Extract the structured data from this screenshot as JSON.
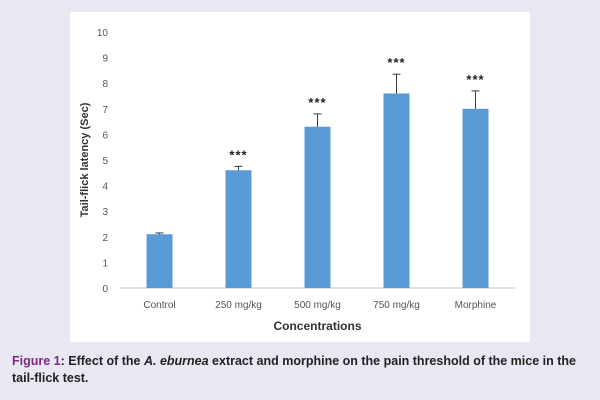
{
  "chart_data": {
    "type": "bar",
    "categories": [
      "Control",
      "250 mg/kg",
      "500 mg/kg",
      "750 mg/kg",
      "Morphine"
    ],
    "values": [
      2.1,
      4.6,
      6.3,
      7.6,
      7.0
    ],
    "errors": [
      0.05,
      0.15,
      0.5,
      0.75,
      0.7
    ],
    "annotations": [
      "",
      "***",
      "***",
      "***",
      "***"
    ],
    "xlabel": "Concentrations",
    "ylabel": "Tail-flick latency (Sec)",
    "ylim": [
      0,
      10
    ],
    "yticks": [
      "0",
      "1",
      "2",
      "3",
      "4",
      "5",
      "6",
      "7",
      "8",
      "9",
      "10"
    ],
    "grid": false,
    "bar_color": "#5b9bd5"
  },
  "caption": {
    "label": "Figure 1",
    "text_before": ": Effect of the ",
    "italic": "A. eburnea",
    "text_after": " extract and morphine on the pain threshold of the mice in the tail-flick test."
  },
  "colors": {
    "background": "#e9e8f2",
    "caption_label": "#7a2a7e"
  }
}
